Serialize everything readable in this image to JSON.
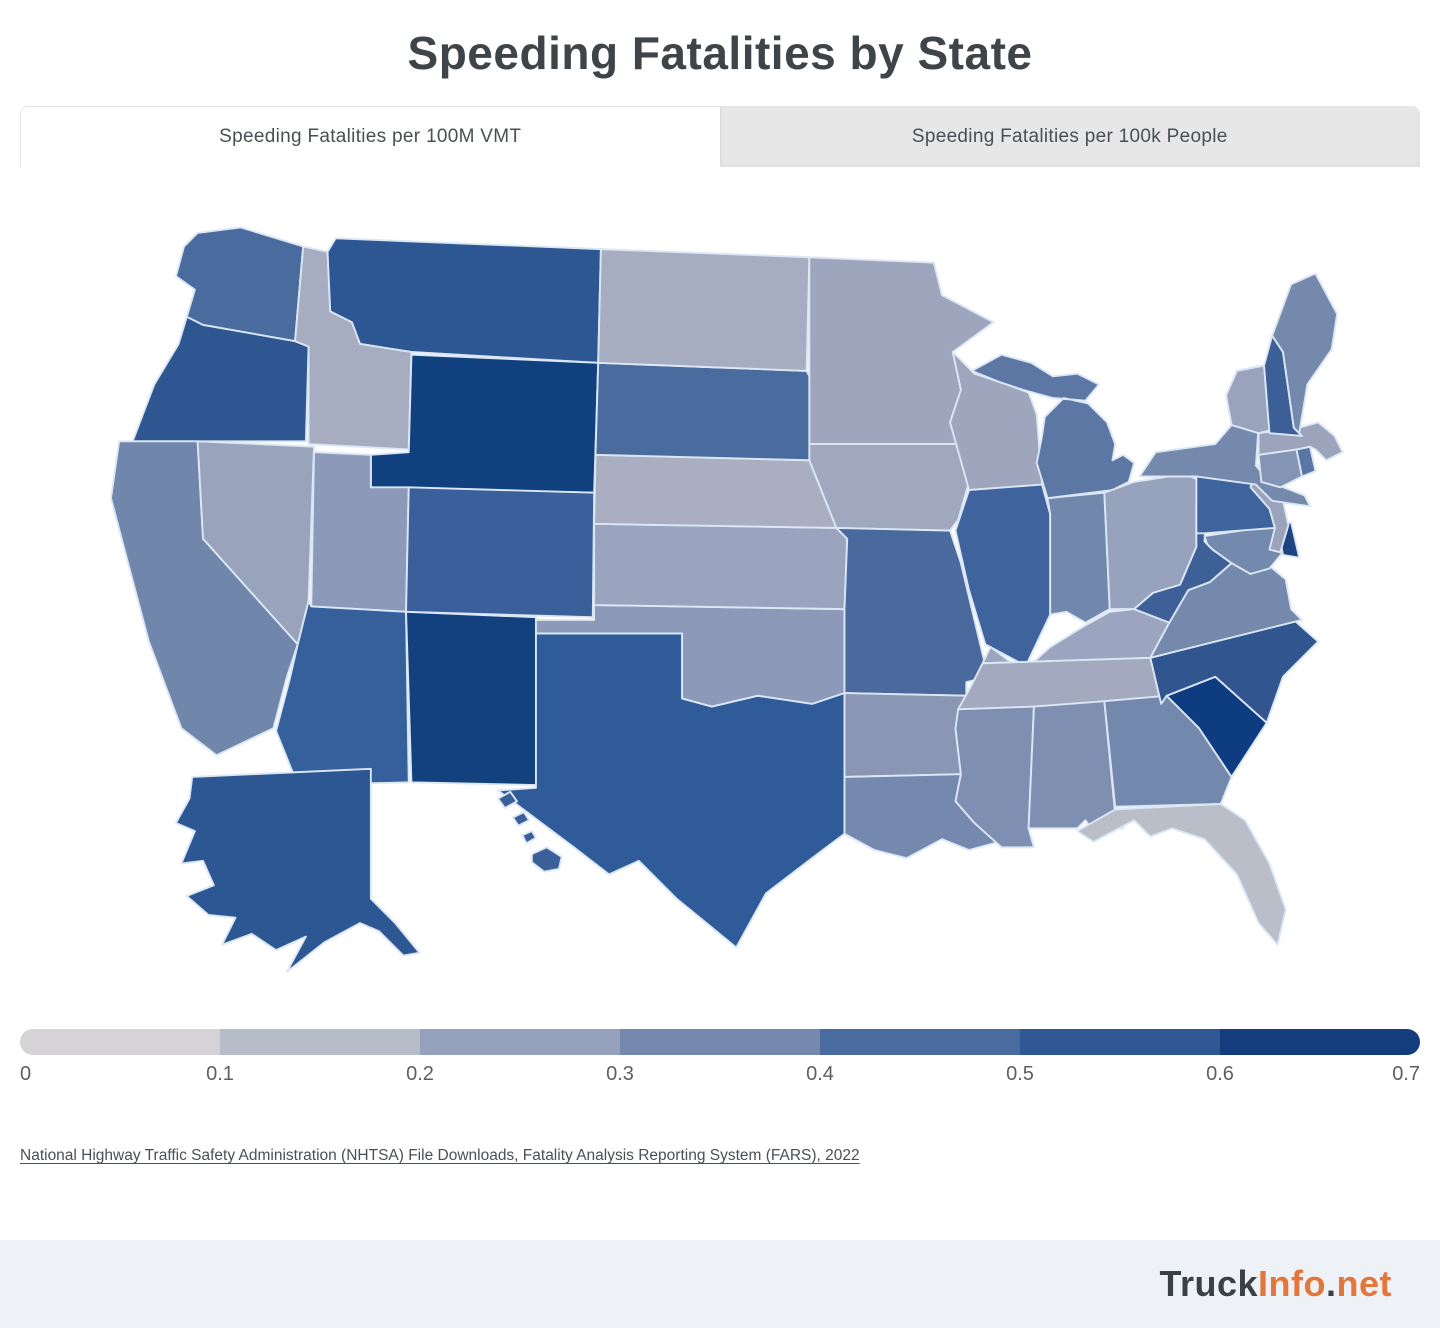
{
  "title": "Speeding Fatalities by State",
  "tabs": [
    {
      "label": "Speeding Fatalities per 100M VMT",
      "active": true
    },
    {
      "label": "Speeding Fatalities per 100k People",
      "active": false
    }
  ],
  "legend": {
    "ticks": [
      "0",
      "0.1",
      "0.2",
      "0.3",
      "0.4",
      "0.5",
      "0.6",
      "0.7"
    ],
    "colors": [
      "#d5d3d6",
      "#b7bcc9",
      "#96a1bd",
      "#7588ad",
      "#4a6b9e",
      "#2e5794",
      "#143d7d"
    ]
  },
  "source": "National Highway Traffic Safety Administration (NHTSA) File Downloads, Fatality Analysis Reporting System (FARS), 2022",
  "footer": {
    "logo": [
      {
        "text": "Truck",
        "color": "#3b4046"
      },
      {
        "text": "Info",
        "color": "#e2763b"
      },
      {
        "text": ".",
        "color": "#3b4046"
      },
      {
        "text": "net",
        "color": "#e2763b"
      }
    ]
  },
  "map": {
    "stroke": "#dbe7f5",
    "states": [
      {
        "code": "WA",
        "name": "Washington",
        "color": "#4a6b9d"
      },
      {
        "code": "OR",
        "name": "Oregon",
        "color": "#2e5792"
      },
      {
        "code": "CA",
        "name": "California",
        "color": "#7186ab"
      },
      {
        "code": "NV",
        "name": "Nevada",
        "color": "#9aa3bc"
      },
      {
        "code": "ID",
        "name": "Idaho",
        "color": "#a6adc0"
      },
      {
        "code": "MT",
        "name": "Montana",
        "color": "#2d5792"
      },
      {
        "code": "WY",
        "name": "Wyoming",
        "color": "#11407e"
      },
      {
        "code": "UT",
        "name": "Utah",
        "color": "#8d99b8"
      },
      {
        "code": "CO",
        "name": "Colorado",
        "color": "#3a5f9b"
      },
      {
        "code": "AZ",
        "name": "Arizona",
        "color": "#35609b"
      },
      {
        "code": "NM",
        "name": "New Mexico",
        "color": "#12417d"
      },
      {
        "code": "TX",
        "name": "Texas",
        "color": "#2f5b98"
      },
      {
        "code": "OK",
        "name": "Oklahoma",
        "color": "#8d99b8"
      },
      {
        "code": "KS",
        "name": "Kansas",
        "color": "#9aa4be"
      },
      {
        "code": "NE",
        "name": "Nebraska",
        "color": "#a9afc1"
      },
      {
        "code": "SD",
        "name": "South Dakota",
        "color": "#4a6b9e"
      },
      {
        "code": "ND",
        "name": "North Dakota",
        "color": "#a6adc0"
      },
      {
        "code": "MN",
        "name": "Minnesota",
        "color": "#9da6bd"
      },
      {
        "code": "IA",
        "name": "Iowa",
        "color": "#a0a8bd"
      },
      {
        "code": "MO",
        "name": "Missouri",
        "color": "#4a699c"
      },
      {
        "code": "AR",
        "name": "Arkansas",
        "color": "#8a96b4"
      },
      {
        "code": "LA",
        "name": "Louisiana",
        "color": "#7588ad"
      },
      {
        "code": "WI",
        "name": "Wisconsin",
        "color": "#9da6bd"
      },
      {
        "code": "IL",
        "name": "Illinois",
        "color": "#3f639c"
      },
      {
        "code": "IN",
        "name": "Indiana",
        "color": "#7287ac"
      },
      {
        "code": "MI",
        "name": "Michigan",
        "color": "#5d77a4"
      },
      {
        "code": "OH",
        "name": "Ohio",
        "color": "#97a2bd"
      },
      {
        "code": "KY",
        "name": "Kentucky",
        "color": "#9ba5bf"
      },
      {
        "code": "TN",
        "name": "Tennessee",
        "color": "#a3aabf"
      },
      {
        "code": "MS",
        "name": "Mississippi",
        "color": "#7e8fb2"
      },
      {
        "code": "AL",
        "name": "Alabama",
        "color": "#7e8fb2"
      },
      {
        "code": "GA",
        "name": "Georgia",
        "color": "#7288ad"
      },
      {
        "code": "FL",
        "name": "Florida",
        "color": "#b9bec9"
      },
      {
        "code": "SC",
        "name": "South Carolina",
        "color": "#0e3c80"
      },
      {
        "code": "NC",
        "name": "North Carolina",
        "color": "#31568f"
      },
      {
        "code": "VA",
        "name": "Virginia",
        "color": "#7489ac"
      },
      {
        "code": "WV",
        "name": "West Virginia",
        "color": "#3c6097"
      },
      {
        "code": "MD",
        "name": "Maryland",
        "color": "#7489ae"
      },
      {
        "code": "DE",
        "name": "Delaware",
        "color": "#1c4480"
      },
      {
        "code": "NJ",
        "name": "New Jersey",
        "color": "#9aa3bb"
      },
      {
        "code": "PA",
        "name": "Pennsylvania",
        "color": "#3f639c"
      },
      {
        "code": "NY",
        "name": "New York",
        "color": "#7489ac"
      },
      {
        "code": "CT",
        "name": "Connecticut",
        "color": "#8494b4"
      },
      {
        "code": "RI",
        "name": "Rhode Island",
        "color": "#5a76a5"
      },
      {
        "code": "MA",
        "name": "Massachusetts",
        "color": "#9ba4bb"
      },
      {
        "code": "VT",
        "name": "Vermont",
        "color": "#9aa3bc"
      },
      {
        "code": "NH",
        "name": "New Hampshire",
        "color": "#3c5f98"
      },
      {
        "code": "ME",
        "name": "Maine",
        "color": "#7489ac"
      },
      {
        "code": "AK",
        "name": "Alaska",
        "color": "#2c5793"
      },
      {
        "code": "HI",
        "name": "Hawaii",
        "color": "#3b5f98"
      }
    ]
  },
  "chart_data": {
    "type": "heatmap",
    "title": "Speeding Fatalities by State",
    "subtitle_tabs": [
      "Speeding Fatalities per 100M VMT",
      "Speeding Fatalities per 100k People"
    ],
    "active_metric": "Speeding Fatalities per 100M VMT",
    "legend_scale": {
      "min": 0,
      "max": 0.7,
      "tick_step": 0.1,
      "bin_colors": [
        "#d5d3d6",
        "#b7bcc9",
        "#96a1bd",
        "#7588ad",
        "#4a6b9e",
        "#2e5794",
        "#143d7d"
      ]
    },
    "note": "Choropleth of the United States; each state shaded by speeding fatalities per 100M vehicle miles traveled on a 0-0.7 scale. Darkest states: Wyoming, New Mexico, South Carolina. Lightest state: Florida.",
    "source": "National Highway Traffic Safety Administration (NHTSA) File Downloads, Fatality Analysis Reporting System (FARS), 2022"
  }
}
